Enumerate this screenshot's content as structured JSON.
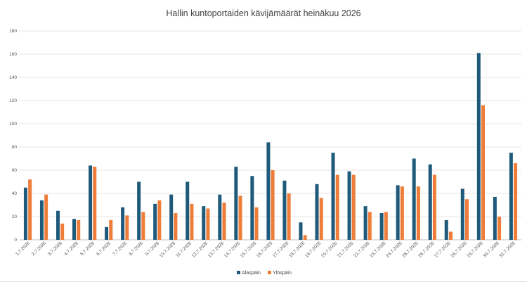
{
  "chart_data": {
    "type": "bar",
    "title": "Hallin kuntoportaiden kävijämäärät heinäkuu 2026",
    "xlabel": "",
    "ylabel": "",
    "ylim": [
      0,
      180
    ],
    "yticks": [
      0,
      20,
      40,
      60,
      80,
      100,
      120,
      140,
      160,
      180
    ],
    "grid": true,
    "legend_position": "bottom",
    "categories": [
      "1.7.2026",
      "2.7.2026",
      "3.7.2026",
      "4.7.2026",
      "5.7.2026",
      "6.7.2026",
      "7.7.2026",
      "8.7.2026",
      "9.7.2026",
      "10.7.2026",
      "11.7.2026",
      "12.7.2026",
      "13.7.2026",
      "14.7.2026",
      "15.7.2026",
      "16.7.2026",
      "17.7.2026",
      "18.7.2026",
      "19.7.2026",
      "20.7.2026",
      "21.7.2026",
      "22.7.2026",
      "23.7.2026",
      "24.7.2026",
      "25.7.2026",
      "26.7.2026",
      "27.7.2026",
      "28.7.2026",
      "29.7.2026",
      "30.7.2026",
      "31.7.2026"
    ],
    "series": [
      {
        "name": "Alaspäin",
        "color": "#1f5a7a",
        "values": [
          45,
          34,
          25,
          18,
          64,
          11,
          28,
          50,
          31,
          39,
          50,
          29,
          39,
          63,
          55,
          84,
          51,
          15,
          48,
          75,
          59,
          29,
          23,
          47,
          70,
          65,
          17,
          44,
          161,
          37,
          75
        ]
      },
      {
        "name": "Ylöspäin",
        "color": "#ee7d3a",
        "values": [
          52,
          39,
          14,
          17,
          63,
          17,
          21,
          24,
          34,
          23,
          31,
          27,
          32,
          38,
          28,
          60,
          40,
          4,
          36,
          56,
          56,
          24,
          24,
          46,
          46,
          56,
          7,
          35,
          116,
          20,
          66
        ]
      }
    ]
  }
}
